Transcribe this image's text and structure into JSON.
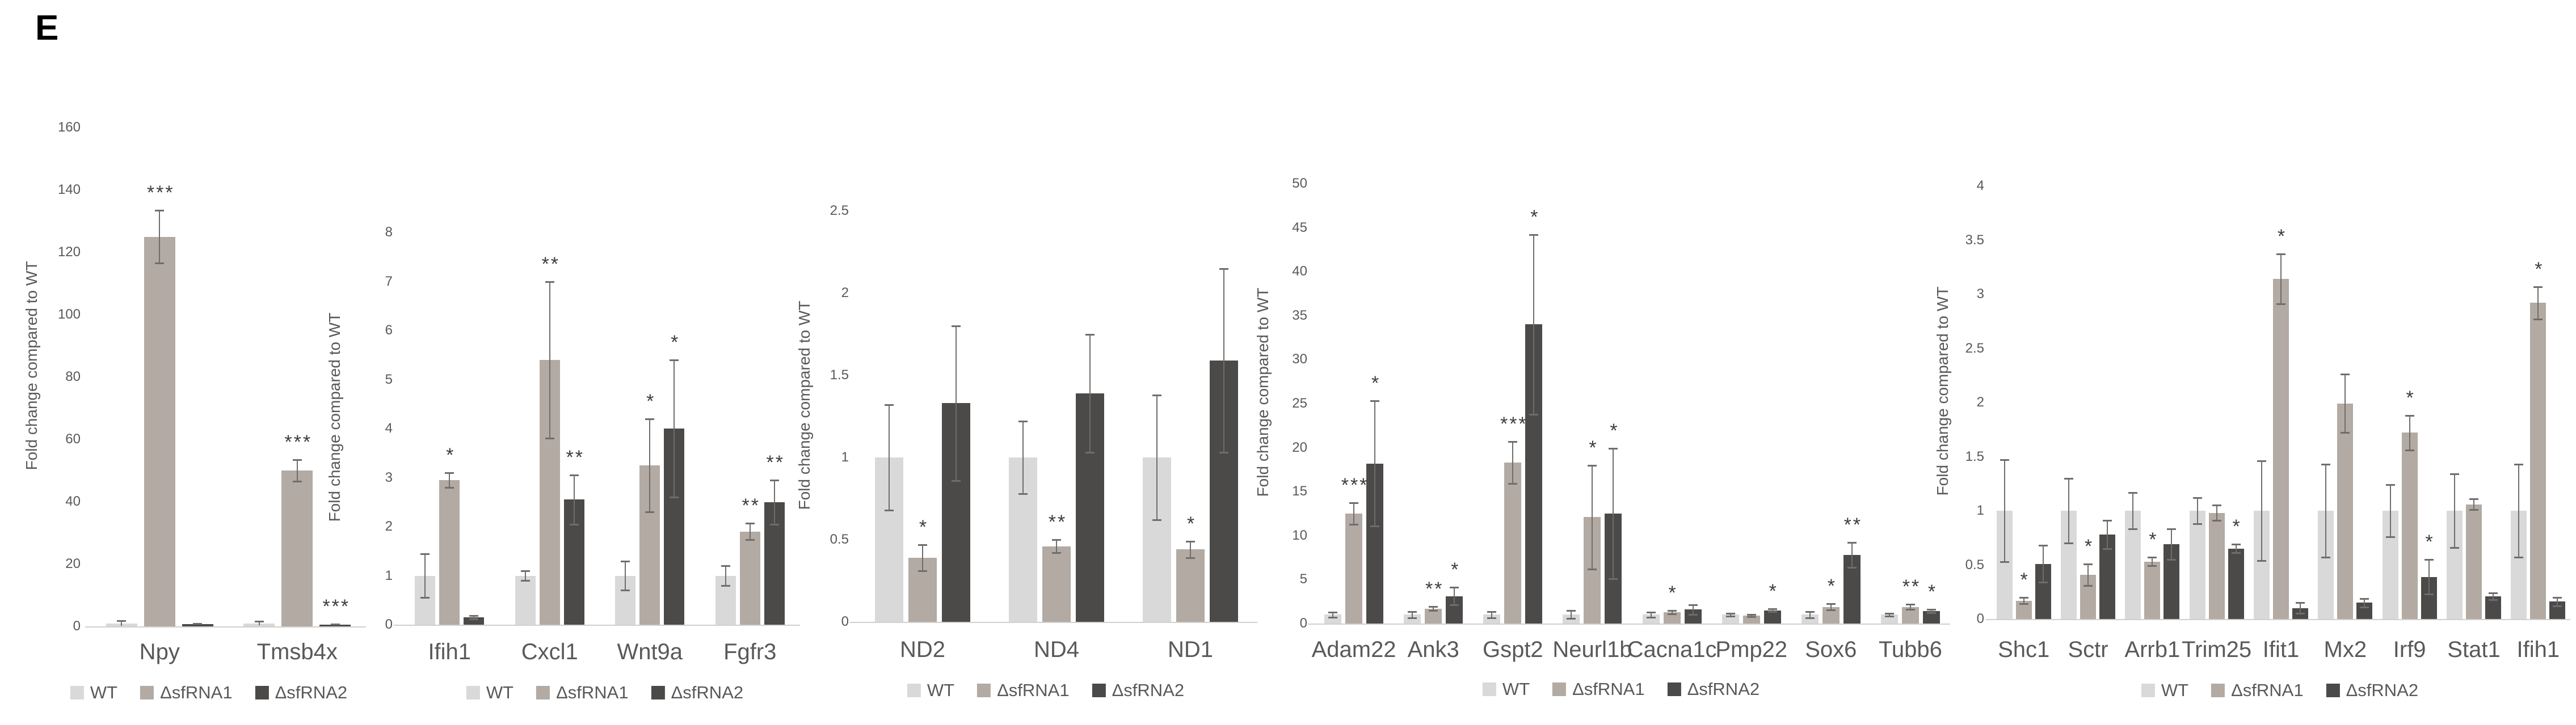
{
  "page": {
    "panel_label": "E",
    "background": "#ffffff"
  },
  "palette": {
    "wt": "#d9d9d9",
    "sfrna1": "#b2aaa3",
    "sfrna2": "#4c4a48",
    "axis_text": "#595959",
    "error_bar": "#6f6d6b",
    "baseline": "#d2d0ce",
    "sig_marker": "#3d3d3d"
  },
  "legend_labels": [
    "WT",
    "ΔsfRNA1",
    "ΔsfRNA2"
  ],
  "chart_data": [
    {
      "type": "bar",
      "title": "",
      "ylabel": "Fold change compared to WT",
      "xlabel": "",
      "ylim": [
        0,
        160
      ],
      "ytick_step": 20,
      "grid": false,
      "legend_position": "bottom",
      "categories": [
        "Npy",
        "Tmsb4x"
      ],
      "series": [
        {
          "name": "WT",
          "values": [
            1,
            1
          ],
          "errors": [
            0.9,
            0.6
          ],
          "sig": [
            "",
            ""
          ]
        },
        {
          "name": "ΔsfRNA1",
          "values": [
            125,
            50
          ],
          "errors": [
            8.5,
            3.5
          ],
          "sig": [
            "***",
            "***"
          ]
        },
        {
          "name": "ΔsfRNA2",
          "values": [
            0.7,
            0.6
          ],
          "errors": [
            0.2,
            0.2
          ],
          "sig": [
            "",
            "***"
          ]
        }
      ]
    },
    {
      "type": "bar",
      "title": "",
      "ylabel": "Fold change compared to WT",
      "xlabel": "",
      "ylim": [
        0,
        8
      ],
      "ytick_step": 1,
      "grid": false,
      "legend_position": "bottom",
      "categories": [
        "Ifih1",
        "Cxcl1",
        "Wnt9a",
        "Fgfr3"
      ],
      "series": [
        {
          "name": "WT",
          "values": [
            1,
            1,
            1,
            1
          ],
          "errors": [
            0.45,
            0.1,
            0.3,
            0.2
          ],
          "sig": [
            "",
            "",
            "",
            ""
          ]
        },
        {
          "name": "ΔsfRNA1",
          "values": [
            2.95,
            5.4,
            3.25,
            1.9
          ],
          "errors": [
            0.15,
            1.6,
            0.95,
            0.17
          ],
          "sig": [
            "*",
            "**",
            "*",
            "**"
          ]
        },
        {
          "name": "ΔsfRNA2",
          "values": [
            0.15,
            2.55,
            4.0,
            2.5
          ],
          "errors": [
            0.04,
            0.5,
            1.4,
            0.45
          ],
          "sig": [
            "",
            "**",
            "*",
            "**"
          ]
        }
      ]
    },
    {
      "type": "bar",
      "title": "",
      "ylabel": "Fold change compared to WT",
      "xlabel": "",
      "ylim": [
        0,
        2.5
      ],
      "ytick_step": 0.5,
      "grid": false,
      "legend_position": "bottom",
      "categories": [
        "ND2",
        "ND4",
        "ND1"
      ],
      "series": [
        {
          "name": "WT",
          "values": [
            1,
            1,
            1
          ],
          "errors": [
            0.32,
            0.22,
            0.38
          ],
          "sig": [
            "",
            "",
            ""
          ]
        },
        {
          "name": "ΔsfRNA1",
          "values": [
            0.39,
            0.46,
            0.44
          ],
          "errors": [
            0.08,
            0.04,
            0.05
          ],
          "sig": [
            "*",
            "**",
            "*"
          ]
        },
        {
          "name": "ΔsfRNA2",
          "values": [
            1.33,
            1.39,
            1.59
          ],
          "errors": [
            0.47,
            0.36,
            0.56
          ],
          "sig": [
            "",
            "",
            ""
          ]
        }
      ]
    },
    {
      "type": "bar",
      "title": "",
      "ylabel": "Fold change compared to WT",
      "xlabel": "",
      "ylim": [
        0,
        50
      ],
      "ytick_step": 5,
      "grid": false,
      "legend_position": "bottom",
      "categories": [
        "Adam22",
        "Ank3",
        "Gspt2",
        "Neurl1b",
        "Cacna1c",
        "Pmp22",
        "Sox6",
        "Tubb6"
      ],
      "series": [
        {
          "name": "WT",
          "values": [
            1,
            1,
            1,
            1,
            1,
            1,
            1,
            1
          ],
          "errors": [
            0.3,
            0.35,
            0.35,
            0.45,
            0.3,
            0.15,
            0.35,
            0.15
          ],
          "sig": [
            "",
            "",
            "",
            "",
            "",
            "",
            "",
            ""
          ]
        },
        {
          "name": "ΔsfRNA1",
          "values": [
            12.5,
            1.7,
            18.3,
            12.1,
            1.3,
            0.9,
            1.9,
            1.9
          ],
          "errors": [
            1.2,
            0.25,
            2.4,
            5.9,
            0.2,
            0.1,
            0.35,
            0.3
          ],
          "sig": [
            "***",
            "**",
            "***",
            "*",
            "*",
            "",
            "*",
            "**"
          ]
        },
        {
          "name": "ΔsfRNA2",
          "values": [
            18.2,
            3.1,
            34,
            12.5,
            1.6,
            1.5,
            7.8,
            1.4
          ],
          "errors": [
            7.1,
            1.0,
            10.2,
            7.4,
            0.55,
            0.15,
            1.4,
            0.2
          ],
          "sig": [
            "*",
            "*",
            "*",
            "*",
            "",
            "*",
            "**",
            "*"
          ]
        }
      ]
    },
    {
      "type": "bar",
      "title": "",
      "ylabel": "Fold change compared to WT",
      "xlabel": "",
      "ylim": [
        0,
        4
      ],
      "ytick_step": 0.5,
      "grid": false,
      "legend_position": "bottom",
      "categories": [
        "Shc1",
        "Sctr",
        "Arrb1",
        "Trim25",
        "Ifit1",
        "Mx2",
        "Irf9",
        "Stat1",
        "Ifih1"
      ],
      "series": [
        {
          "name": "WT",
          "values": [
            1,
            1,
            1,
            1,
            1,
            1,
            1,
            1,
            1
          ],
          "errors": [
            0.47,
            0.3,
            0.17,
            0.12,
            0.46,
            0.43,
            0.24,
            0.34,
            0.43
          ],
          "sig": [
            "",
            "",
            "",
            "",
            "",
            "",
            "",
            "",
            ""
          ]
        },
        {
          "name": "ΔsfRNA1",
          "values": [
            0.17,
            0.41,
            0.53,
            0.98,
            3.14,
            1.99,
            1.72,
            1.06,
            2.92
          ],
          "errors": [
            0.03,
            0.1,
            0.04,
            0.07,
            0.23,
            0.27,
            0.16,
            0.05,
            0.15
          ],
          "sig": [
            "*",
            "*",
            "*",
            "",
            "*",
            "",
            "*",
            "",
            "*"
          ]
        },
        {
          "name": "ΔsfRNA2",
          "values": [
            0.51,
            0.78,
            0.69,
            0.65,
            0.1,
            0.15,
            0.39,
            0.21,
            0.16
          ],
          "errors": [
            0.17,
            0.13,
            0.14,
            0.04,
            0.05,
            0.04,
            0.16,
            0.03,
            0.04
          ],
          "sig": [
            "",
            "",
            "",
            "*",
            "",
            "",
            "*",
            "",
            ""
          ]
        }
      ]
    }
  ]
}
